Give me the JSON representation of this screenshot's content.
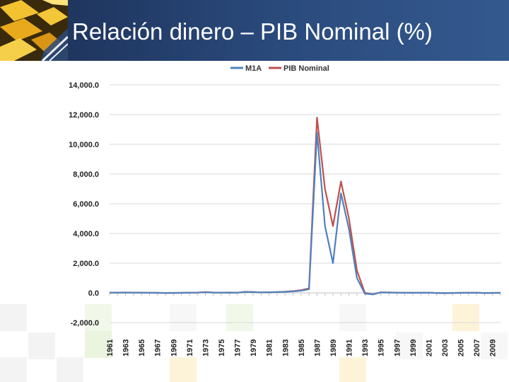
{
  "slide": {
    "title": "Relación dinero – PIB Nominal (%)"
  },
  "chart_data": {
    "type": "line",
    "title": "",
    "xlabel": "",
    "ylabel": "",
    "ylim": [
      -2000,
      14000
    ],
    "y_ticks": [
      "14,000.0",
      "12,000.0",
      "10,000.0",
      "8,000.0",
      "6,000.0",
      "4,000.0",
      "2,000.0",
      "0.0",
      "-2,000.0"
    ],
    "y_tick_values": [
      14000,
      12000,
      10000,
      8000,
      6000,
      4000,
      2000,
      0,
      -2000
    ],
    "x_tick_labels": [
      "1961",
      "1963",
      "1965",
      "1967",
      "1969",
      "1971",
      "1973",
      "1975",
      "1977",
      "1979",
      "1981",
      "1983",
      "1985",
      "1987",
      "1989",
      "1991",
      "1993",
      "1995",
      "1997",
      "1999",
      "2001",
      "2003",
      "2005",
      "2007",
      "2009"
    ],
    "legend_position": "top",
    "grid": true,
    "x": [
      1961,
      1962,
      1963,
      1964,
      1965,
      1966,
      1967,
      1968,
      1969,
      1970,
      1971,
      1972,
      1973,
      1974,
      1975,
      1976,
      1977,
      1978,
      1979,
      1980,
      1981,
      1982,
      1983,
      1984,
      1985,
      1986,
      1987,
      1988,
      1989,
      1990,
      1991,
      1992,
      1993,
      1994,
      1995,
      1996,
      1997,
      1998,
      1999,
      2000,
      2001,
      2002,
      2003,
      2004,
      2005,
      2006,
      2007,
      2008,
      2009,
      2010
    ],
    "series": [
      {
        "name": "M1A",
        "color": "#4f81bd",
        "values": [
          10,
          15,
          20,
          15,
          10,
          5,
          0,
          -10,
          -5,
          0,
          10,
          15,
          40,
          20,
          10,
          20,
          10,
          60,
          50,
          30,
          40,
          50,
          70,
          100,
          150,
          250,
          10800,
          4500,
          2000,
          6700,
          4300,
          1000,
          -50,
          -100,
          30,
          20,
          10,
          5,
          0,
          5,
          10,
          -10,
          -20,
          -10,
          0,
          0,
          5,
          -10,
          -5,
          0
        ]
      },
      {
        "name": "PIB Nominal",
        "color": "#c0504d",
        "values": [
          15,
          20,
          25,
          20,
          15,
          10,
          5,
          -5,
          0,
          5,
          15,
          20,
          50,
          25,
          15,
          25,
          15,
          70,
          60,
          35,
          45,
          55,
          80,
          120,
          180,
          300,
          11800,
          7000,
          4500,
          7500,
          5000,
          1500,
          0,
          -100,
          40,
          30,
          15,
          10,
          5,
          10,
          15,
          -5,
          -15,
          -5,
          5,
          5,
          10,
          -5,
          0,
          5
        ]
      }
    ]
  }
}
